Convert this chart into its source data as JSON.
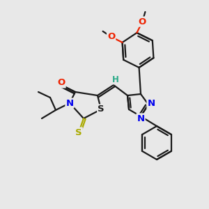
{
  "bg_color": "#e8e8e8",
  "bond_color": "#1a1a1a",
  "atom_colors": {
    "S_thioxo": "#aaaa00",
    "S_ring": "#1a1a1a",
    "N": "#0000ee",
    "O": "#ee2200",
    "H": "#2aaa88",
    "C": "#1a1a1a"
  },
  "font_size": 8.5,
  "fig_size": [
    3.0,
    3.0
  ],
  "dpi": 100
}
